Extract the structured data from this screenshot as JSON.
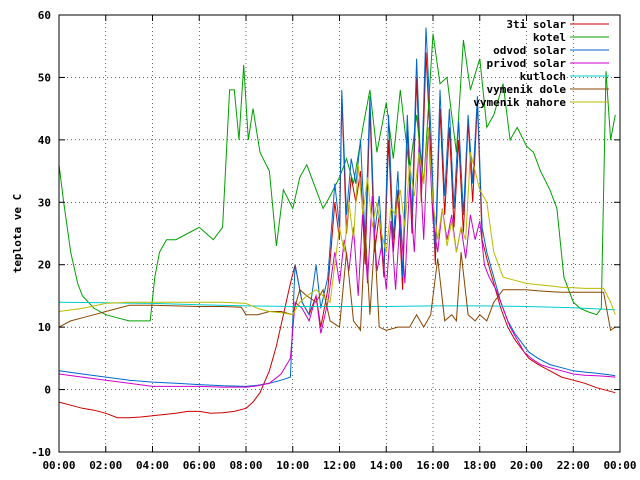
{
  "chart_data": {
    "type": "line",
    "title": "",
    "ylabel": "teplota ve C",
    "xlabel": "",
    "xlim": [
      0,
      24
    ],
    "ylim": [
      -10,
      60
    ],
    "yticks": [
      -10,
      0,
      10,
      20,
      30,
      40,
      50,
      60
    ],
    "xticks": [
      "00:00",
      "02:00",
      "04:00",
      "06:00",
      "08:00",
      "10:00",
      "12:00",
      "14:00",
      "16:00",
      "18:00",
      "20:00",
      "22:00",
      "00:00"
    ],
    "grid": true,
    "legend": "top-right",
    "series": [
      {
        "name": "3ti solar",
        "color": "#cc0000",
        "x": [
          0,
          0.5,
          1,
          1.5,
          2,
          2.5,
          3,
          3.5,
          4,
          4.5,
          5,
          5.5,
          6,
          6.5,
          7,
          7.5,
          8,
          8.3,
          8.6,
          9,
          9.3,
          9.6,
          9.9,
          10.1,
          10.4,
          10.7,
          11,
          11.2,
          11.5,
          11.8,
          12,
          12.1,
          12.3,
          12.5,
          12.7,
          12.9,
          13.1,
          13.3,
          13.5,
          13.7,
          13.9,
          14.1,
          14.3,
          14.5,
          14.7,
          14.9,
          15.1,
          15.3,
          15.5,
          15.7,
          15.9,
          16.1,
          16.3,
          16.5,
          16.7,
          16.9,
          17.1,
          17.3,
          17.5,
          17.7,
          17.9,
          18.1,
          18.3,
          18.6,
          18.9,
          19.2,
          19.5,
          19.8,
          20.1,
          20.5,
          21,
          21.5,
          22,
          22.5,
          23,
          23.5,
          23.8
        ],
        "y": [
          -2,
          -2.5,
          -3,
          -3.3,
          -3.8,
          -4.5,
          -4.5,
          -4.4,
          -4.2,
          -4,
          -3.8,
          -3.5,
          -3.5,
          -3.8,
          -3.7,
          -3.5,
          -3,
          -2,
          -0.5,
          3,
          7,
          12,
          17,
          20,
          14,
          12,
          15,
          10,
          16,
          30,
          24,
          47,
          25,
          34,
          30,
          35,
          20,
          45,
          22,
          28,
          18,
          40,
          22,
          32,
          16,
          42,
          25,
          50,
          30,
          54,
          38,
          20,
          45,
          28,
          42,
          26,
          40,
          25,
          43,
          30,
          46,
          24,
          21,
          17,
          13,
          10,
          8,
          6.5,
          5,
          4,
          3,
          2,
          1.5,
          1,
          0.3,
          -0.2,
          -0.5
        ]
      },
      {
        "name": "kotel",
        "color": "#00a000",
        "x": [
          0,
          0.2,
          0.5,
          0.8,
          1,
          1.5,
          2,
          2.5,
          3,
          3.5,
          3.9,
          4.1,
          4.3,
          4.6,
          5,
          5.5,
          6,
          6.3,
          6.6,
          7,
          7.3,
          7.5,
          7.7,
          7.9,
          8.1,
          8.3,
          8.6,
          9,
          9.3,
          9.6,
          10,
          10.3,
          10.6,
          11,
          11.3,
          11.6,
          12,
          12.3,
          12.6,
          13,
          13.3,
          13.6,
          14,
          14.3,
          14.6,
          15,
          15.3,
          15.6,
          16,
          16.3,
          16.6,
          17,
          17.3,
          17.6,
          18,
          18.3,
          18.6,
          19,
          19.3,
          19.6,
          20,
          20.3,
          20.6,
          21,
          21.3,
          21.6,
          22,
          22.3,
          22.6,
          23,
          23.2,
          23.4,
          23.6,
          23.8
        ],
        "y": [
          36,
          30,
          22,
          17,
          15,
          13,
          12,
          11.5,
          11,
          11,
          11,
          18,
          22,
          24,
          24,
          25,
          26,
          25,
          24,
          26,
          48,
          48,
          40,
          52,
          40,
          45,
          38,
          35,
          23,
          32,
          29,
          34,
          36,
          32,
          29,
          31,
          34,
          37,
          33,
          42,
          48,
          38,
          46,
          37,
          48,
          35,
          44,
          33,
          57,
          49,
          50,
          38,
          56,
          48,
          53,
          42,
          44,
          49,
          40,
          42,
          39,
          38,
          35,
          32,
          29,
          18,
          14,
          13,
          12.5,
          12,
          13,
          51,
          40,
          44
        ]
      },
      {
        "name": "odvod solar",
        "color": "#0066cc",
        "x": [
          0,
          1,
          2,
          3,
          4,
          5,
          6,
          7,
          8,
          8.5,
          9,
          9.5,
          9.9,
          10.1,
          10.4,
          10.7,
          11,
          11.2,
          11.5,
          11.8,
          12,
          12.1,
          12.3,
          12.5,
          12.7,
          12.9,
          13.1,
          13.3,
          13.5,
          13.7,
          13.9,
          14.1,
          14.3,
          14.5,
          14.7,
          14.9,
          15.1,
          15.3,
          15.5,
          15.7,
          15.9,
          16.1,
          16.3,
          16.5,
          16.7,
          16.9,
          17.1,
          17.3,
          17.5,
          17.7,
          17.9,
          18.1,
          18.3,
          18.6,
          18.9,
          19.2,
          19.5,
          19.8,
          20.1,
          20.5,
          21,
          21.5,
          22,
          22.5,
          23,
          23.5,
          23.8
        ],
        "y": [
          3,
          2.5,
          2,
          1.5,
          1.2,
          1,
          0.8,
          0.6,
          0.5,
          0.7,
          1,
          1.5,
          2,
          20,
          14,
          12,
          20,
          13,
          18,
          33,
          26,
          48,
          28,
          37,
          33,
          40,
          24,
          47,
          25,
          31,
          19,
          44,
          24,
          35,
          18,
          44,
          28,
          53,
          33,
          58,
          42,
          22,
          48,
          31,
          45,
          29,
          43,
          28,
          44,
          33,
          47,
          26,
          22,
          18,
          14,
          11,
          9,
          7.5,
          6,
          5,
          4,
          3.5,
          3,
          2.8,
          2.6,
          2.4,
          2.2
        ]
      },
      {
        "name": "privod solar",
        "color": "#cc00cc",
        "x": [
          0,
          1,
          2,
          3,
          4,
          5,
          6,
          7,
          8,
          8.5,
          9,
          9.5,
          9.9,
          10.1,
          10.4,
          10.7,
          11,
          11.2,
          11.5,
          11.8,
          12,
          12.2,
          12.4,
          12.6,
          12.8,
          13,
          13.2,
          13.4,
          13.6,
          13.8,
          14,
          14.2,
          14.4,
          14.6,
          14.8,
          15,
          15.2,
          15.4,
          15.6,
          15.8,
          16,
          16.2,
          16.4,
          16.6,
          16.8,
          17,
          17.2,
          17.4,
          17.6,
          17.8,
          18,
          18.2,
          18.4,
          18.7,
          19,
          19.3,
          19.6,
          19.9,
          20.2,
          20.6,
          21,
          21.5,
          22,
          22.5,
          23,
          23.5,
          23.8
        ],
        "y": [
          2.5,
          2,
          1.5,
          1,
          0.5,
          0.5,
          0.5,
          0.4,
          0.4,
          0.6,
          1,
          2.5,
          5,
          14,
          13,
          11,
          15,
          9,
          14,
          22,
          17,
          24,
          19,
          26,
          15,
          29,
          17,
          31,
          19,
          23,
          16,
          27,
          16,
          28,
          17,
          33,
          22,
          39,
          24,
          42,
          27,
          22,
          29,
          24,
          28,
          22,
          26,
          21,
          28,
          24,
          27,
          20,
          18,
          16,
          13,
          10,
          8,
          6,
          5,
          4,
          3.5,
          3,
          2.5,
          2.3,
          2.2,
          2.1,
          2
        ]
      },
      {
        "name": "kutloch",
        "color": "#00cccc",
        "x": [
          0,
          2,
          4,
          6,
          8,
          10,
          12,
          14,
          16,
          18,
          20,
          22,
          23.8
        ],
        "y": [
          14,
          13.9,
          13.8,
          13.6,
          13.4,
          13.3,
          13.3,
          13.3,
          13.4,
          13.4,
          13.3,
          13.1,
          12.8
        ]
      },
      {
        "name": "vymenik dole",
        "color": "#884400",
        "x": [
          0,
          0.5,
          1,
          1.5,
          2,
          3,
          4,
          5,
          6,
          7,
          7.8,
          8,
          8.5,
          9,
          9.5,
          10,
          10.3,
          10.6,
          11,
          11.3,
          11.6,
          12,
          12.3,
          12.6,
          12.9,
          13.1,
          13.3,
          13.5,
          13.7,
          14,
          14.5,
          15,
          15.3,
          15.6,
          15.9,
          16.2,
          16.5,
          16.8,
          17,
          17.2,
          17.5,
          17.8,
          18,
          18.3,
          18.6,
          19,
          19.5,
          20,
          20.5,
          21,
          21.5,
          22,
          22.5,
          23,
          23.3,
          23.6,
          23.8
        ],
        "y": [
          10,
          11,
          11.5,
          12,
          12.5,
          13.5,
          13.5,
          13.4,
          13.3,
          13.3,
          13.2,
          12,
          12,
          12.5,
          12.5,
          12,
          16,
          15,
          14,
          16,
          11,
          10,
          22,
          11,
          9.5,
          26,
          12,
          24,
          10,
          9.5,
          10,
          10,
          12,
          10,
          12,
          21,
          11,
          12,
          11,
          22,
          12,
          11,
          12,
          11,
          14,
          16,
          16,
          16,
          15.8,
          15.7,
          15.6,
          15.6,
          15.6,
          15.6,
          15.6,
          9.5,
          10
        ]
      },
      {
        "name": "vymenik nahore",
        "color": "#bbbb00",
        "x": [
          0,
          1,
          2,
          3,
          4,
          5,
          6,
          7,
          8,
          8.5,
          9,
          9.5,
          10,
          10.3,
          10.6,
          11,
          11.3,
          11.6,
          12,
          12.2,
          12.4,
          12.6,
          12.8,
          13,
          13.2,
          13.4,
          13.6,
          13.8,
          14,
          14.2,
          14.4,
          14.6,
          14.8,
          15,
          15.2,
          15.4,
          15.6,
          15.8,
          16,
          16.2,
          16.4,
          16.6,
          16.8,
          17,
          17.2,
          17.4,
          17.6,
          17.8,
          18,
          18.3,
          18.6,
          19,
          19.5,
          20,
          20.5,
          21,
          21.5,
          22,
          22.5,
          23,
          23.3,
          23.6,
          23.8
        ],
        "y": [
          12.5,
          13,
          13.8,
          14,
          14,
          14,
          14,
          14,
          13.8,
          13,
          12.5,
          12.3,
          12,
          14,
          15,
          16,
          15,
          14,
          26,
          22,
          30,
          24,
          36,
          28,
          34,
          26,
          30,
          25,
          22,
          29,
          28,
          32,
          26,
          36,
          31,
          38,
          33,
          42,
          30,
          24,
          29,
          23,
          27,
          22,
          26,
          24,
          38,
          35,
          32,
          30,
          22,
          18,
          17.5,
          17,
          16.8,
          16.6,
          16.4,
          16.3,
          16.2,
          16.2,
          16.2,
          14,
          12
        ]
      }
    ]
  }
}
